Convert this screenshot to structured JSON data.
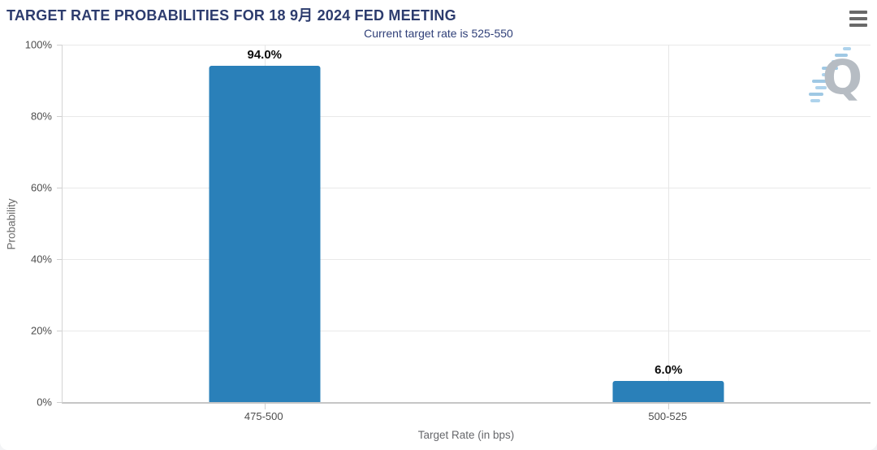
{
  "header": {
    "title": "TARGET RATE PROBABILITIES FOR 18 9月 2024 FED MEETING",
    "subtitle": "Current target rate is 525-550"
  },
  "icons": {
    "menu": "hamburger-icon"
  },
  "watermark": {
    "letter": "Q"
  },
  "colors": {
    "bar": "#2a80b9",
    "title_navy": "#2d3c6e",
    "axis_text": "#4d4d4d",
    "watermark_blue": "#aed3ec"
  },
  "chart_data": {
    "type": "bar",
    "title": "TARGET RATE PROBABILITIES FOR 18 9月 2024 FED MEETING",
    "subtitle": "Current target rate is 525-550",
    "categories": [
      "475-500",
      "500-525"
    ],
    "values": [
      94.0,
      6.0
    ],
    "value_labels": [
      "94.0%",
      "6.0%"
    ],
    "xlabel": "Target Rate (in bps)",
    "ylabel": "Probability",
    "ylim": [
      0,
      100
    ],
    "yticks": [
      "0%",
      "20%",
      "40%",
      "60%",
      "80%",
      "100%"
    ],
    "grid": true,
    "legend": "none",
    "bar_color": "#2a80b9"
  }
}
